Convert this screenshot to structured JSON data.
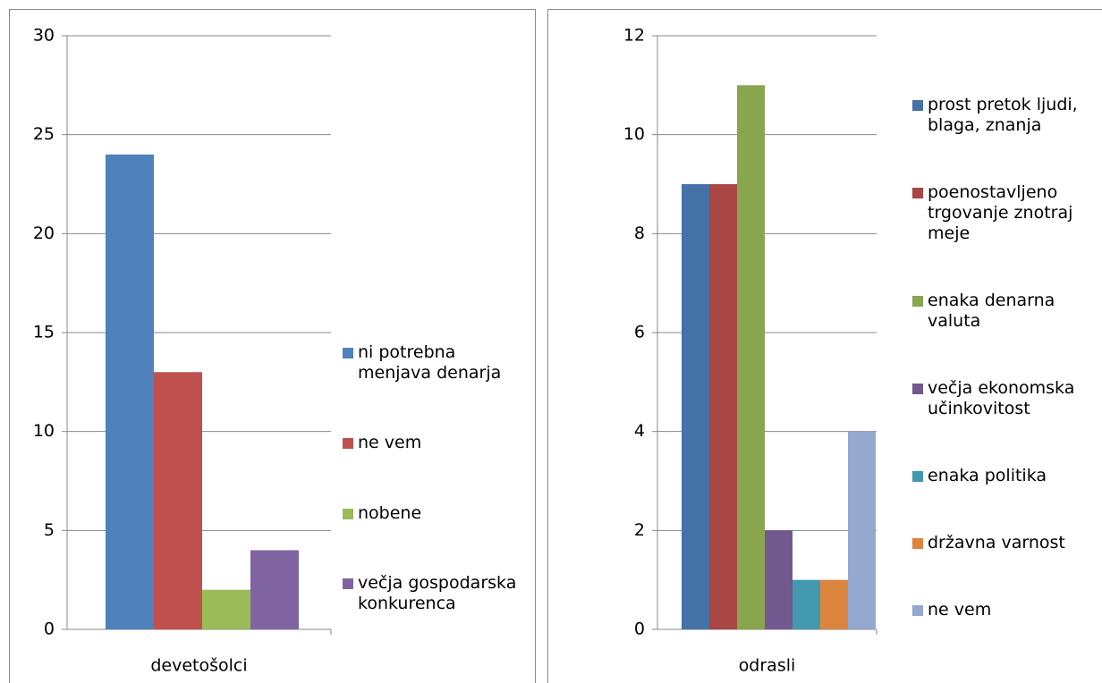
{
  "chart_data": [
    {
      "type": "bar",
      "categories": [
        "devetošolci"
      ],
      "series": [
        {
          "name": "ni potrebna menjava denarja",
          "color": "#4f81bd",
          "values": [
            24
          ]
        },
        {
          "name": "ne vem",
          "color": "#c0504d",
          "values": [
            13
          ]
        },
        {
          "name": "nobene",
          "color": "#9bbb59",
          "values": [
            2
          ]
        },
        {
          "name": "večja gospodarska konkurenca",
          "color": "#8064a2",
          "values": [
            4
          ]
        }
      ],
      "ylim": [
        0,
        30
      ],
      "yticks": [
        0,
        5,
        10,
        15,
        20,
        25,
        30
      ],
      "grid": true,
      "legend": "right"
    },
    {
      "type": "bar",
      "categories": [
        "odrasli"
      ],
      "series": [
        {
          "name": "prost pretok ljudi, blaga, znanja",
          "color": "#4572a7",
          "values": [
            9
          ]
        },
        {
          "name": "poenostavljeno trgovanje znotraj meje",
          "color": "#aa4643",
          "values": [
            9
          ]
        },
        {
          "name": "enaka denarna valuta",
          "color": "#89a54e",
          "values": [
            11
          ]
        },
        {
          "name": "večja ekonomska učinkovitost",
          "color": "#71588f",
          "values": [
            2
          ]
        },
        {
          "name": "enaka politika",
          "color": "#4198af",
          "values": [
            1
          ]
        },
        {
          "name": "državna varnost",
          "color": "#db843d",
          "values": [
            1
          ]
        },
        {
          "name": "ne vem",
          "color": "#93a9cf",
          "values": [
            4
          ]
        }
      ],
      "ylim": [
        0,
        12
      ],
      "yticks": [
        0,
        2,
        4,
        6,
        8,
        10,
        12
      ],
      "grid": true,
      "legend": "right"
    }
  ]
}
